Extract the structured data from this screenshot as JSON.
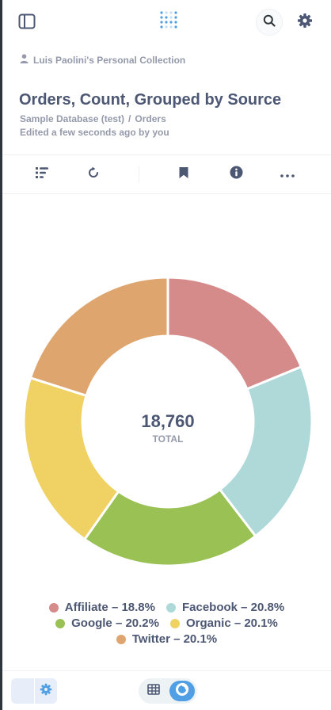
{
  "topbar": {
    "icons": [
      "sidebar-toggle-icon",
      "metabase-logo",
      "search-icon",
      "gear-icon"
    ]
  },
  "header": {
    "collection": "Luis Paolini's Personal Collection",
    "title": "Orders, Count, Grouped by Source",
    "database": "Sample Database (test)",
    "separator": "/",
    "table": "Orders",
    "edited": "Edited a few seconds ago by you"
  },
  "toolbar": {
    "icons": [
      "notebook-icon",
      "refresh-icon",
      "bookmark-icon",
      "info-icon",
      "more-icon"
    ]
  },
  "chart_data": {
    "type": "pie",
    "center_value": "18,760",
    "center_label": "TOTAL",
    "series": [
      {
        "name": "Affiliate",
        "percent": 18.8,
        "color": "#d68b8b",
        "label": "Affiliate – 18.8%"
      },
      {
        "name": "Facebook",
        "percent": 20.8,
        "color": "#afd9d9",
        "label": "Facebook – 20.8%"
      },
      {
        "name": "Google",
        "percent": 20.2,
        "color": "#99c154",
        "label": "Google – 20.2%"
      },
      {
        "name": "Organic",
        "percent": 20.1,
        "color": "#f0d264",
        "label": "Organic – 20.1%"
      },
      {
        "name": "Twitter",
        "percent": 20.1,
        "color": "#dfa56f",
        "label": "Twitter – 20.1%"
      }
    ]
  },
  "bottom": {
    "icons": [
      "gear-icon",
      "table-icon",
      "pie-chart-icon"
    ],
    "accent": "#509ee3"
  }
}
